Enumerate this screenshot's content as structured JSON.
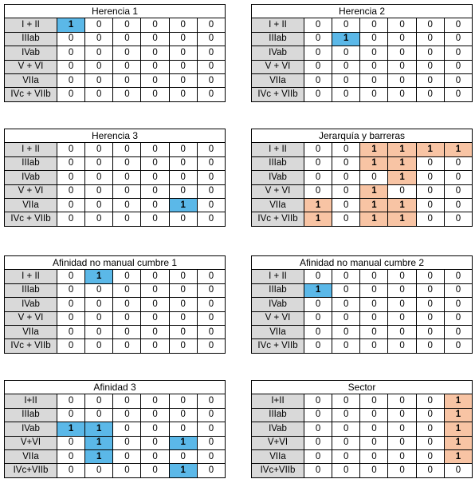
{
  "tables": [
    {
      "title": "Herencia 1",
      "highlight_color": "#5bb8e8",
      "rows": [
        {
          "label": "I + II",
          "values": [
            1,
            0,
            0,
            0,
            0,
            0
          ]
        },
        {
          "label": "IIIab",
          "values": [
            0,
            0,
            0,
            0,
            0,
            0
          ]
        },
        {
          "label": "IVab",
          "values": [
            0,
            0,
            0,
            0,
            0,
            0
          ]
        },
        {
          "label": "V + VI",
          "values": [
            0,
            0,
            0,
            0,
            0,
            0
          ]
        },
        {
          "label": "VIIa",
          "values": [
            0,
            0,
            0,
            0,
            0,
            0
          ]
        },
        {
          "label": "IVc + VIIb",
          "values": [
            0,
            0,
            0,
            0,
            0,
            0
          ]
        }
      ]
    },
    {
      "title": "Herencia 2",
      "highlight_color": "#5bb8e8",
      "rows": [
        {
          "label": "I + II",
          "values": [
            0,
            0,
            0,
            0,
            0,
            0
          ]
        },
        {
          "label": "IIIab",
          "values": [
            0,
            1,
            0,
            0,
            0,
            0
          ]
        },
        {
          "label": "IVab",
          "values": [
            0,
            0,
            0,
            0,
            0,
            0
          ]
        },
        {
          "label": "V + VI",
          "values": [
            0,
            0,
            0,
            0,
            0,
            0
          ]
        },
        {
          "label": "VIIa",
          "values": [
            0,
            0,
            0,
            0,
            0,
            0
          ]
        },
        {
          "label": "IVc + VIIb",
          "values": [
            0,
            0,
            0,
            0,
            0,
            0
          ]
        }
      ]
    },
    {
      "title": "Herencia 3",
      "highlight_color": "#5bb8e8",
      "rows": [
        {
          "label": "I + II",
          "values": [
            0,
            0,
            0,
            0,
            0,
            0
          ]
        },
        {
          "label": "IIIab",
          "values": [
            0,
            0,
            0,
            0,
            0,
            0
          ]
        },
        {
          "label": "IVab",
          "values": [
            0,
            0,
            0,
            0,
            0,
            0
          ]
        },
        {
          "label": "V + VI",
          "values": [
            0,
            0,
            0,
            0,
            0,
            0
          ]
        },
        {
          "label": "VIIa",
          "values": [
            0,
            0,
            0,
            0,
            1,
            0
          ]
        },
        {
          "label": "IVc + VIIb",
          "values": [
            0,
            0,
            0,
            0,
            0,
            0
          ]
        }
      ]
    },
    {
      "title": "Jerarquía y barreras",
      "highlight_color": "#f8c4a4",
      "rows": [
        {
          "label": "I + II",
          "values": [
            0,
            0,
            1,
            1,
            1,
            1
          ]
        },
        {
          "label": "IIIab",
          "values": [
            0,
            0,
            1,
            1,
            0,
            0
          ]
        },
        {
          "label": "IVab",
          "values": [
            0,
            0,
            0,
            1,
            0,
            0
          ]
        },
        {
          "label": "V + VI",
          "values": [
            0,
            0,
            1,
            0,
            0,
            0
          ]
        },
        {
          "label": "VIIa",
          "values": [
            1,
            0,
            1,
            1,
            0,
            0
          ]
        },
        {
          "label": "IVc + VIIb",
          "values": [
            1,
            0,
            1,
            1,
            0,
            0
          ]
        }
      ]
    },
    {
      "title": "Afinidad no manual cumbre 1",
      "highlight_color": "#5bb8e8",
      "rows": [
        {
          "label": "I + II",
          "values": [
            0,
            1,
            0,
            0,
            0,
            0
          ]
        },
        {
          "label": "IIIab",
          "values": [
            0,
            0,
            0,
            0,
            0,
            0
          ]
        },
        {
          "label": "IVab",
          "values": [
            0,
            0,
            0,
            0,
            0,
            0
          ]
        },
        {
          "label": "V + VI",
          "values": [
            0,
            0,
            0,
            0,
            0,
            0
          ]
        },
        {
          "label": "VIIa",
          "values": [
            0,
            0,
            0,
            0,
            0,
            0
          ]
        },
        {
          "label": "IVc + VIIb",
          "values": [
            0,
            0,
            0,
            0,
            0,
            0
          ]
        }
      ]
    },
    {
      "title": "Afinidad no manual cumbre 2",
      "highlight_color": "#5bb8e8",
      "rows": [
        {
          "label": "I + II",
          "values": [
            0,
            0,
            0,
            0,
            0,
            0
          ]
        },
        {
          "label": "IIIab",
          "values": [
            1,
            0,
            0,
            0,
            0,
            0
          ]
        },
        {
          "label": "IVab",
          "values": [
            0,
            0,
            0,
            0,
            0,
            0
          ]
        },
        {
          "label": "V + VI",
          "values": [
            0,
            0,
            0,
            0,
            0,
            0
          ]
        },
        {
          "label": "VIIa",
          "values": [
            0,
            0,
            0,
            0,
            0,
            0
          ]
        },
        {
          "label": "IVc + VIIb",
          "values": [
            0,
            0,
            0,
            0,
            0,
            0
          ]
        }
      ]
    },
    {
      "title": "Afinidad 3",
      "highlight_color": "#5bb8e8",
      "rows": [
        {
          "label": "I+II",
          "values": [
            0,
            0,
            0,
            0,
            0,
            0
          ]
        },
        {
          "label": "IIIab",
          "values": [
            0,
            0,
            0,
            0,
            0,
            0
          ]
        },
        {
          "label": "IVab",
          "values": [
            1,
            1,
            0,
            0,
            0,
            0
          ]
        },
        {
          "label": "V+VI",
          "values": [
            0,
            1,
            0,
            0,
            1,
            0
          ]
        },
        {
          "label": "VIIa",
          "values": [
            0,
            1,
            0,
            0,
            0,
            0
          ]
        },
        {
          "label": "IVc+VIIb",
          "values": [
            0,
            0,
            0,
            0,
            1,
            0
          ]
        }
      ]
    },
    {
      "title": "Sector",
      "highlight_color": "#f8c4a4",
      "rows": [
        {
          "label": "I+II",
          "values": [
            0,
            0,
            0,
            0,
            0,
            1
          ]
        },
        {
          "label": "IIIab",
          "values": [
            0,
            0,
            0,
            0,
            0,
            1
          ]
        },
        {
          "label": "IVab",
          "values": [
            0,
            0,
            0,
            0,
            0,
            1
          ]
        },
        {
          "label": "V+VI",
          "values": [
            0,
            0,
            0,
            0,
            0,
            1
          ]
        },
        {
          "label": "VIIa",
          "values": [
            0,
            0,
            0,
            0,
            0,
            1
          ]
        },
        {
          "label": "IVc+VIIb",
          "values": [
            0,
            0,
            0,
            0,
            0,
            0
          ]
        }
      ]
    }
  ]
}
